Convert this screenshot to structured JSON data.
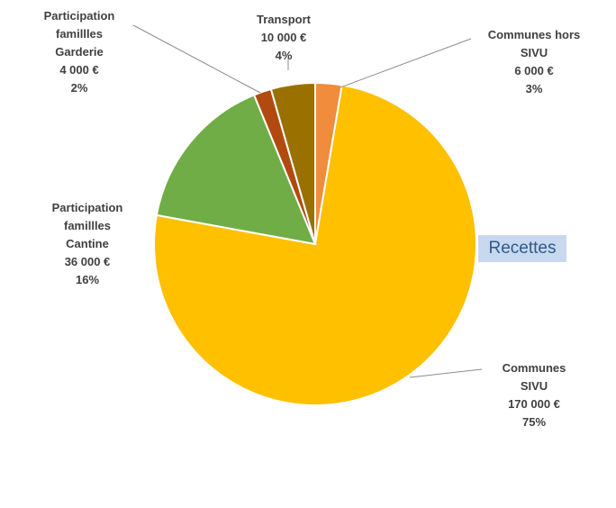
{
  "chart_data": {
    "type": "pie",
    "title": "Recettes",
    "unit": "€",
    "slices": [
      {
        "lines": [
          "Communes hors",
          "SIVU"
        ],
        "value_label": "6 000 €",
        "pct_label": "3%",
        "value": 6000,
        "percent": 3,
        "color": "#f08c3c"
      },
      {
        "lines": [
          "Communes",
          "SIVU"
        ],
        "value_label": "170 000 €",
        "pct_label": "75%",
        "value": 170000,
        "percent": 75,
        "color": "#ffc000"
      },
      {
        "lines": [
          "Participation",
          "famillles",
          "Cantine"
        ],
        "value_label": "36 000 €",
        "pct_label": "16%",
        "value": 36000,
        "percent": 16,
        "color": "#70ad47"
      },
      {
        "lines": [
          "Participation",
          "famillles",
          "Garderie"
        ],
        "value_label": "4 000 €",
        "pct_label": "2%",
        "value": 4000,
        "percent": 2,
        "color": "#b24a10"
      },
      {
        "lines": [
          "Transport"
        ],
        "value_label": "10 000 €",
        "pct_label": "4%",
        "value": 10000,
        "percent": 4,
        "color": "#9a7000"
      }
    ]
  }
}
